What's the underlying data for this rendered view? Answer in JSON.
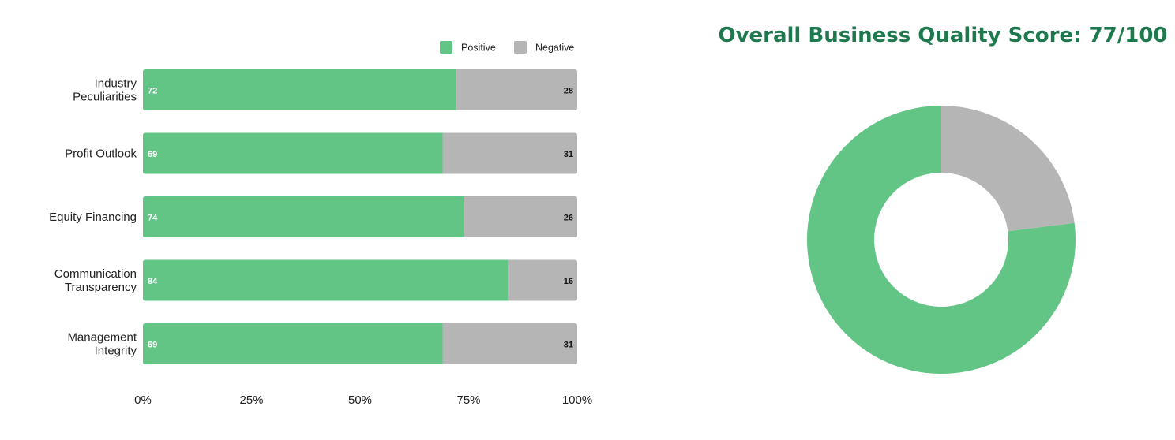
{
  "chart_data": [
    {
      "type": "bar",
      "orientation": "horizontal",
      "stacked": true,
      "percent_axis": true,
      "categories": [
        [
          "Industry",
          "Peculiarities"
        ],
        [
          "Profit Outlook"
        ],
        [
          "Equity Financing"
        ],
        [
          "Communication",
          "Transparency"
        ],
        [
          "Management",
          "Integrity"
        ]
      ],
      "series": [
        {
          "name": "Positive",
          "color": "#63c585",
          "values": [
            72,
            69,
            74,
            84,
            69
          ]
        },
        {
          "name": "Negative",
          "color": "#b5b5b5",
          "values": [
            28,
            31,
            26,
            16,
            31
          ]
        }
      ],
      "x_ticks": [
        "0%",
        "25%",
        "50%",
        "75%",
        "100%"
      ],
      "xlim": [
        0,
        100
      ],
      "legend": "top-right",
      "grid": false
    },
    {
      "type": "pie",
      "variant": "donut",
      "title": "Overall Business Quality Score: 77/100",
      "slices": [
        {
          "name": "",
          "value": 77,
          "color": "#63c585"
        },
        {
          "name": "",
          "value": 23,
          "color": "#b5b5b5"
        }
      ]
    }
  ]
}
